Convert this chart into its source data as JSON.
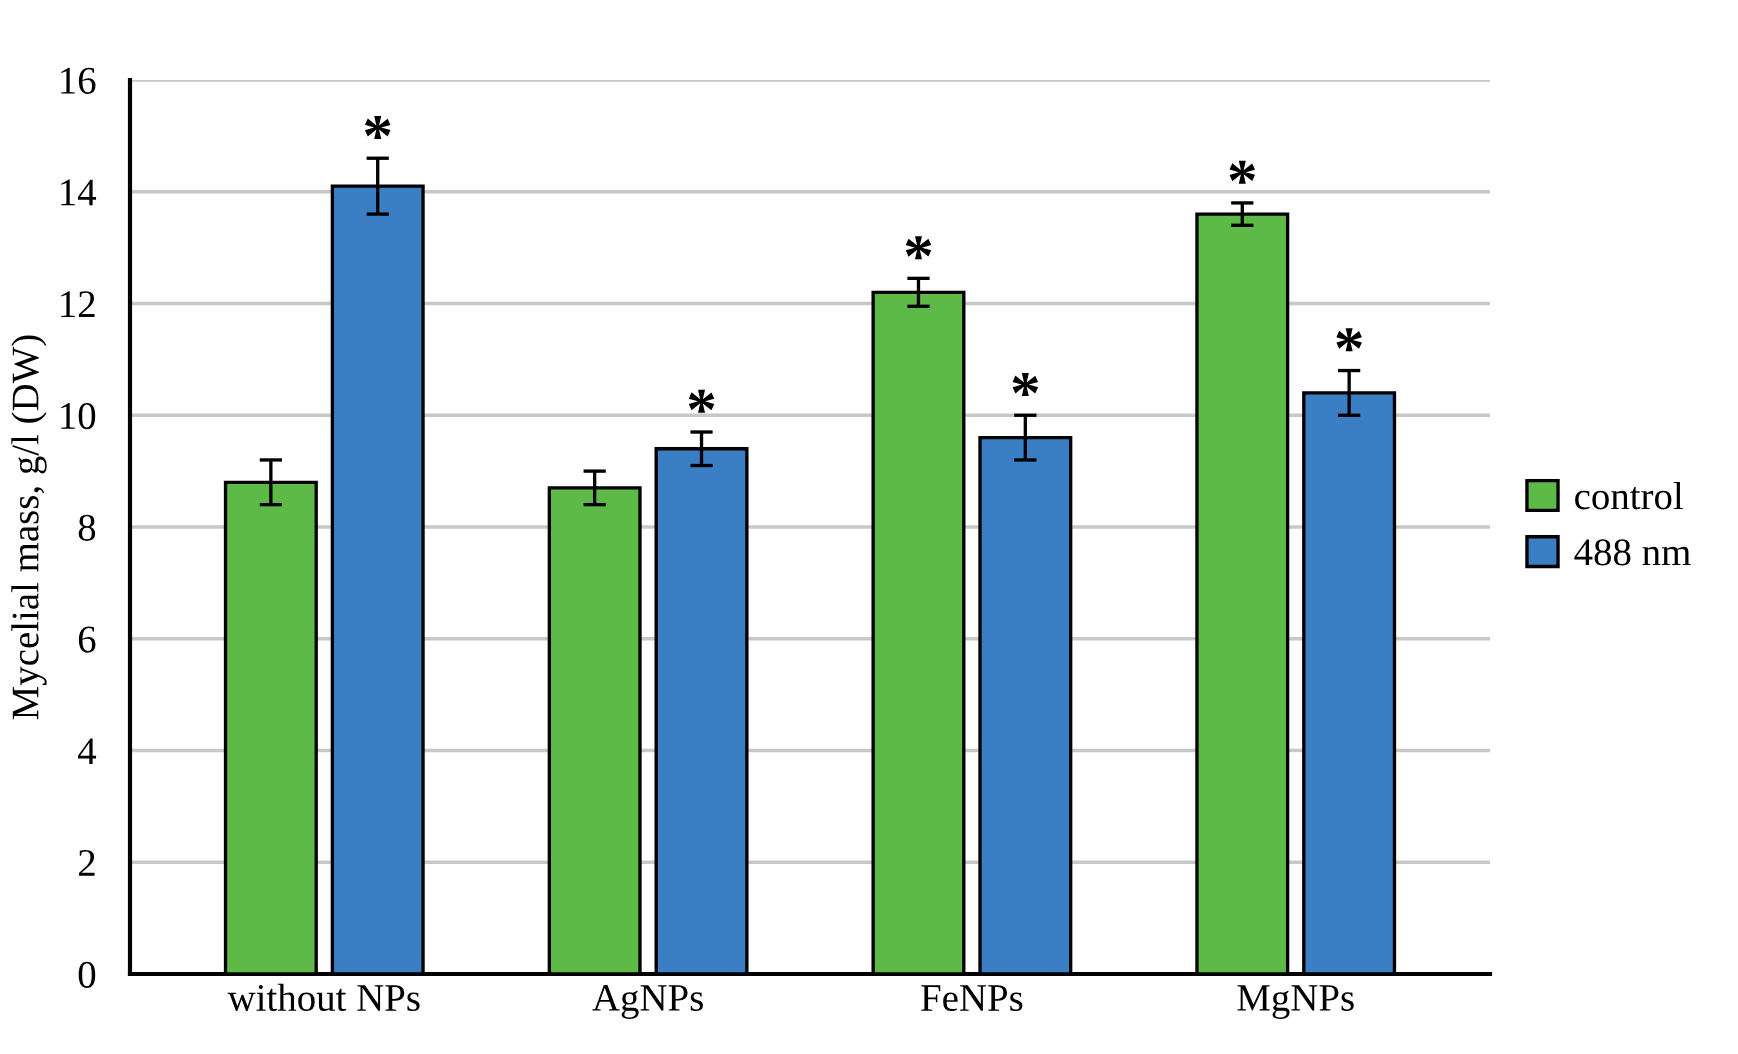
{
  "chart_data": {
    "type": "bar",
    "ylabel": "Mycelial mass, g/l (DW)",
    "categories": [
      "without NPs",
      "AgNPs",
      "FeNPs",
      "MgNPs"
    ],
    "series": [
      {
        "name": "control",
        "color": "#5dba47",
        "values": [
          8.8,
          8.7,
          12.2,
          13.6
        ],
        "errors": [
          0.4,
          0.3,
          0.25,
          0.2
        ],
        "value_labels": [
          null,
          null,
          "*",
          "*"
        ]
      },
      {
        "name": "488 nm",
        "color": "#3a7ec4",
        "values": [
          14.1,
          9.4,
          9.6,
          10.4
        ],
        "errors": [
          0.5,
          0.3,
          0.4,
          0.4
        ],
        "value_labels": [
          "*",
          "*",
          "*",
          "*"
        ]
      }
    ],
    "ylim": [
      0,
      16
    ],
    "yticks": [
      0,
      2,
      4,
      6,
      8,
      10,
      12,
      14,
      16
    ],
    "grid": "y",
    "legend": "right"
  }
}
